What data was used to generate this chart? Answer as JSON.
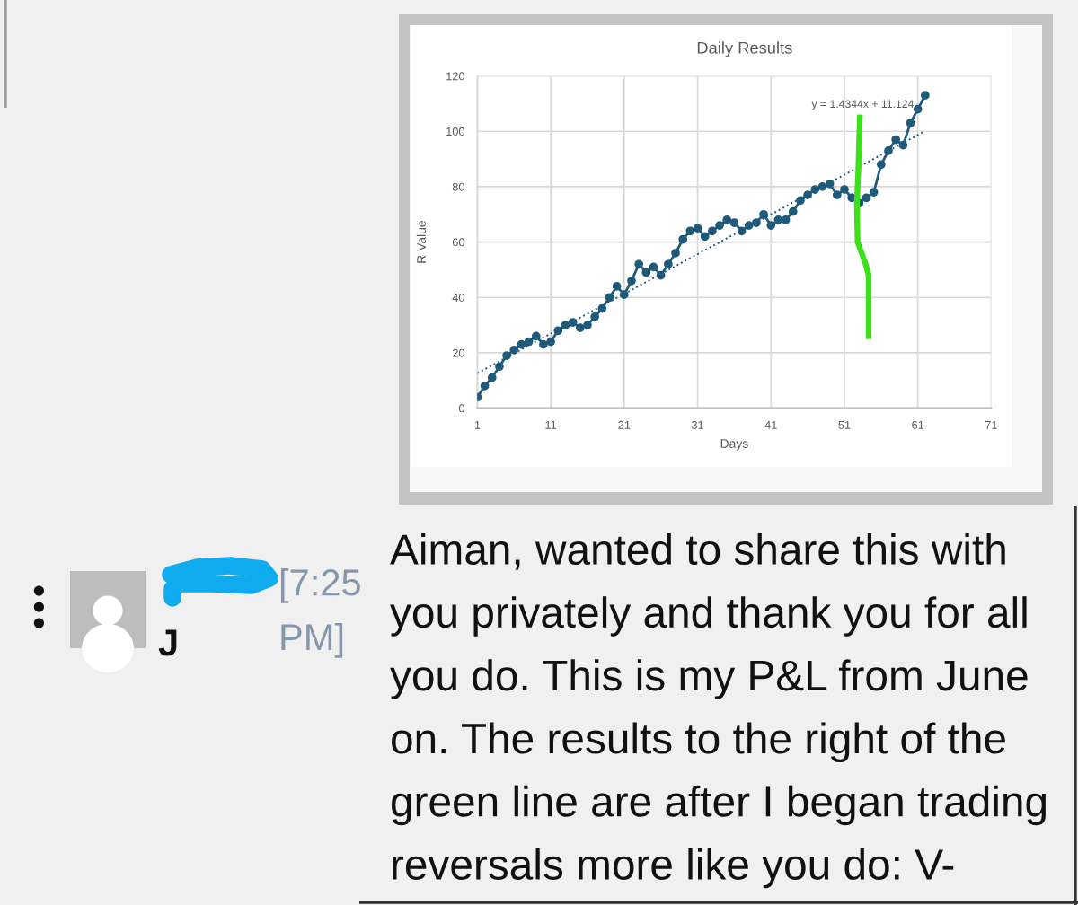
{
  "chart_data": {
    "type": "line",
    "title": "Daily Results",
    "xlabel": "Days",
    "ylabel": "R Value",
    "series": [
      {
        "color": "#1f5a7a",
        "x": [
          1,
          2,
          3,
          4,
          5,
          6,
          7,
          8,
          9,
          10,
          11,
          12,
          13,
          14,
          15,
          16,
          17,
          18,
          19,
          20,
          21,
          22,
          23,
          24,
          25,
          26,
          27,
          28,
          29,
          30,
          31,
          32,
          33,
          34,
          35,
          36,
          37,
          38,
          39,
          40,
          41,
          42,
          43,
          44,
          45,
          46,
          47,
          48,
          49,
          50,
          51,
          52,
          53,
          54,
          55,
          56,
          57,
          58,
          59,
          60,
          61,
          62
        ],
        "values": [
          4,
          8,
          11,
          15,
          19,
          21,
          23,
          24,
          26,
          23,
          24,
          28,
          30,
          31,
          29,
          30,
          33,
          36,
          40,
          44,
          41,
          46,
          52,
          49,
          51,
          48,
          52,
          56,
          61,
          64,
          65,
          62,
          64,
          66,
          68,
          67,
          64,
          66,
          67,
          70,
          66,
          68,
          68,
          71,
          75,
          77,
          79,
          80,
          81,
          77,
          79,
          76,
          74,
          76,
          78,
          88,
          93,
          97,
          95,
          103,
          108,
          113
        ]
      },
      {
        "type": "line",
        "color": "#1f5a7a",
        "marker": "none",
        "line_style": "dotted",
        "x": [
          1,
          62
        ],
        "values": [
          12.6,
          100.1
        ]
      },
      {
        "type": "line",
        "color": "#3ee01c",
        "marker": "none",
        "x": [
          53.1,
          52.9,
          52.7,
          52.8,
          53.9,
          54.3,
          54.3
        ],
        "values": [
          105,
          86,
          74,
          60,
          52,
          48,
          26
        ]
      }
    ],
    "xlim": [
      1,
      71
    ],
    "xticks": [
      1,
      11,
      21,
      31,
      41,
      51,
      61,
      71
    ],
    "ylim": [
      0,
      120
    ],
    "yticks": [
      0,
      20,
      40,
      60,
      80,
      100,
      120
    ],
    "grid": true,
    "marker": "circle",
    "line_style": "solid",
    "annotations": [
      "y = 1.4344x + 11.124",
      "Aiman, wanted to share this with you privately and thank you for all you do. This is my P&L from June on. The results to the right of the green line are after I began trading reversals more like you do: V-",
      "[7:25 PM]",
      "J"
    ]
  }
}
